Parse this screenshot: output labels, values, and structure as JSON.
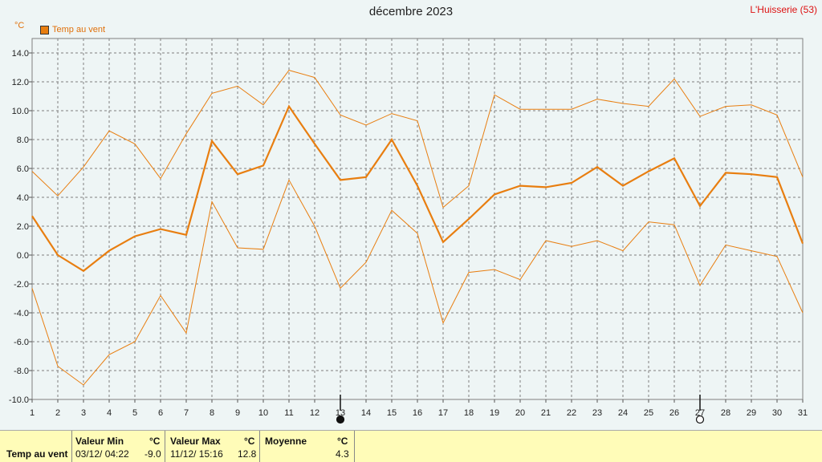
{
  "header": {
    "title": "décembre 2023",
    "station": "L'Huisserie (53)",
    "unit": "°C",
    "legend": "Temp au vent"
  },
  "colors": {
    "series": "#e87e10",
    "grid": "#808080",
    "background": "#eef5f5",
    "footer": "#fffcb8"
  },
  "chart_data": {
    "type": "line",
    "x": [
      1,
      2,
      3,
      4,
      5,
      6,
      7,
      8,
      9,
      10,
      11,
      12,
      13,
      14,
      15,
      16,
      17,
      18,
      19,
      20,
      21,
      22,
      23,
      24,
      25,
      26,
      27,
      28,
      29,
      30,
      31
    ],
    "xlim": [
      1,
      31
    ],
    "ylim": [
      -10,
      15
    ],
    "yticks": [
      "-10.0",
      "-8.0",
      "-6.0",
      "-4.0",
      "-2.0",
      "0.0",
      "2.0",
      "4.0",
      "6.0",
      "8.0",
      "10.0",
      "12.0",
      "14.0"
    ],
    "xticks": [
      "1",
      "2",
      "3",
      "4",
      "5",
      "6",
      "7",
      "8",
      "9",
      "10",
      "11",
      "12",
      "13",
      "14",
      "15",
      "16",
      "17",
      "18",
      "19",
      "20",
      "21",
      "22",
      "23",
      "24",
      "25",
      "26",
      "27",
      "28",
      "29",
      "30",
      "31"
    ],
    "grid": true,
    "series": [
      {
        "name": "Temp au vent",
        "role": "max",
        "values": [
          5.8,
          4.1,
          6.1,
          8.6,
          7.7,
          5.3,
          8.4,
          11.2,
          11.7,
          10.4,
          12.8,
          12.3,
          9.7,
          9.0,
          9.8,
          9.3,
          3.3,
          4.8,
          11.1,
          10.1,
          10.1,
          10.1,
          10.8,
          10.5,
          10.3,
          12.2,
          9.6,
          10.3,
          10.4,
          9.7,
          5.4
        ]
      },
      {
        "name": "Temp au vent",
        "role": "mean",
        "values": [
          2.7,
          0.0,
          -1.1,
          0.3,
          1.3,
          1.8,
          1.4,
          7.9,
          5.6,
          6.2,
          10.3,
          7.7,
          5.2,
          5.4,
          8.0,
          4.8,
          0.9,
          2.5,
          4.2,
          4.8,
          4.7,
          5.0,
          6.1,
          4.8,
          5.8,
          6.7,
          3.4,
          5.7,
          5.6,
          5.4,
          0.8
        ]
      },
      {
        "name": "Temp au vent",
        "role": "min",
        "values": [
          -2.3,
          -7.7,
          -9.0,
          -6.9,
          -6.0,
          -2.8,
          -5.4,
          3.7,
          0.5,
          0.4,
          5.2,
          2.0,
          -2.3,
          -0.5,
          3.1,
          1.5,
          -4.7,
          -1.2,
          -1.0,
          -1.7,
          1.0,
          0.6,
          1.0,
          0.3,
          2.3,
          2.1,
          -2.1,
          0.7,
          0.3,
          -0.1,
          -4.0
        ]
      }
    ],
    "markers": [
      {
        "day": 13,
        "symbol": "new-moon"
      },
      {
        "day": 27,
        "symbol": "full-moon"
      }
    ]
  },
  "footer": {
    "row_label": "Temp au vent",
    "min": {
      "header": "Valeur Min",
      "unit": "°C",
      "date": "03/12/  04:22",
      "value": "-9.0"
    },
    "max": {
      "header": "Valeur Max",
      "unit": "°C",
      "date": "11/12/  15:16",
      "value": "12.8"
    },
    "avg": {
      "header": "Moyenne",
      "unit": "°C",
      "value": "4.3"
    }
  }
}
